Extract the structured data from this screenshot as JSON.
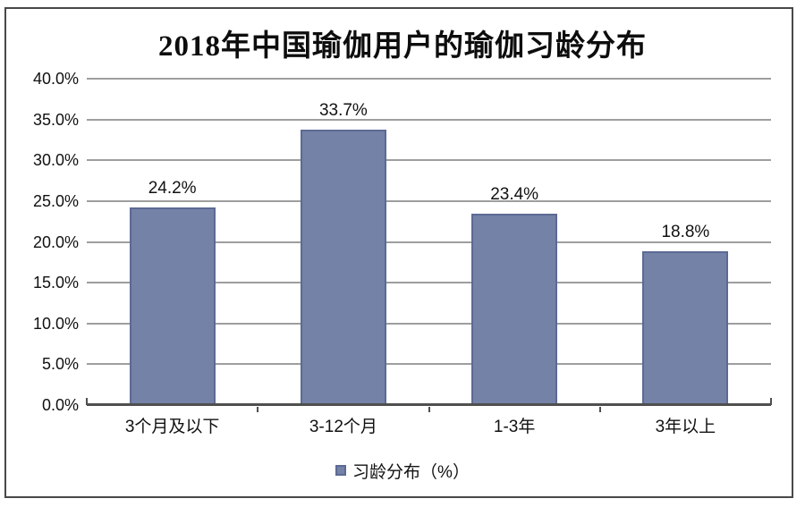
{
  "chart_data": {
    "type": "bar",
    "title": "2018年中国瑜伽用户的瑜伽习龄分布",
    "categories": [
      "3个月及以下",
      "3-12个月",
      "1-3年",
      "3年以上"
    ],
    "values": [
      24.2,
      33.7,
      23.4,
      18.8
    ],
    "value_labels": [
      "24.2%",
      "33.7%",
      "23.4%",
      "18.8%"
    ],
    "series_name": "习龄分布（%）",
    "xlabel": "",
    "ylabel": "",
    "ylim": [
      0,
      40
    ],
    "ytick_step": 5,
    "ytick_labels": [
      "0.0%",
      "5.0%",
      "10.0%",
      "15.0%",
      "20.0%",
      "25.0%",
      "30.0%",
      "35.0%",
      "40.0%"
    ],
    "grid": true,
    "legend_position": "bottom",
    "legend": [
      {
        "label": "习龄分布（%）",
        "color": "#7482a7"
      }
    ],
    "colors": {
      "bar_fill": "#7482a7",
      "bar_border": "#5c6a94",
      "gridline": "#9e9e9e",
      "axis": "#4f4f4f",
      "text": "#111111",
      "frame": "#484848",
      "background": "#ffffff"
    }
  }
}
